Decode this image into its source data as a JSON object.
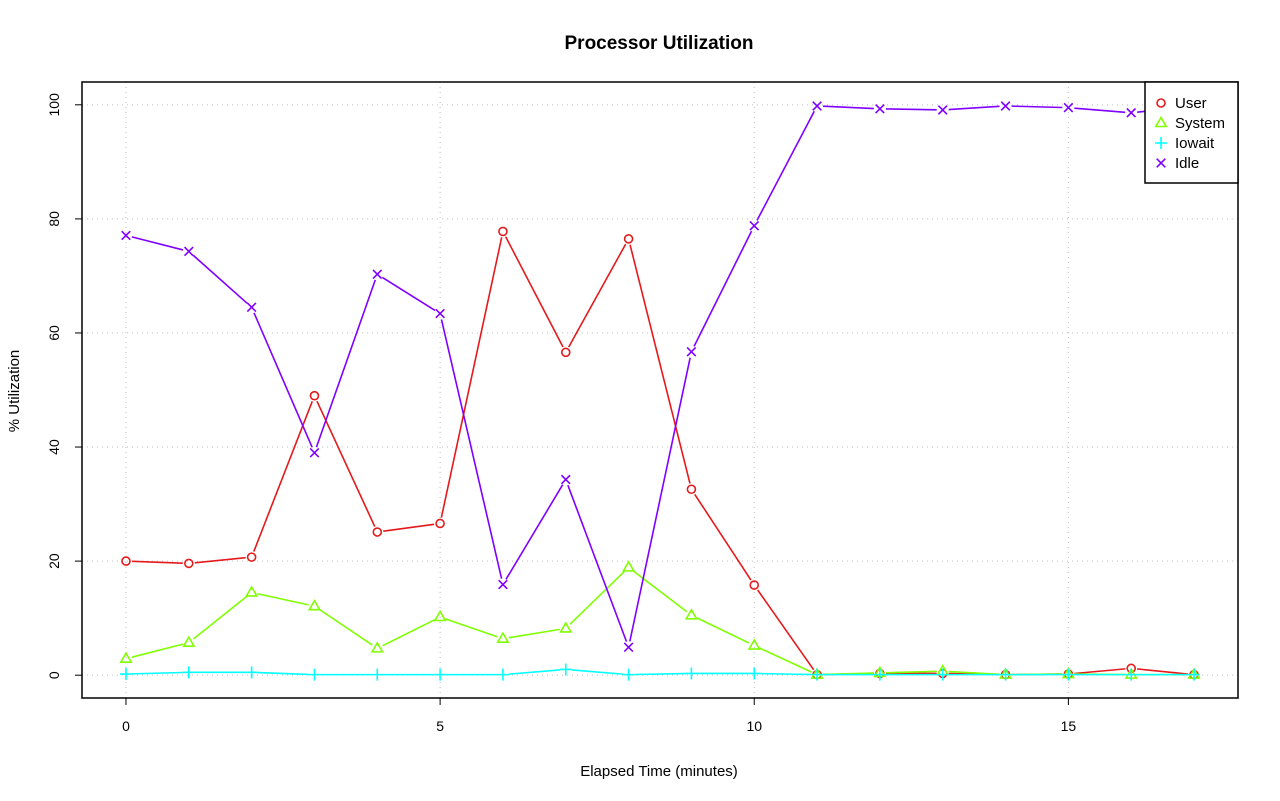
{
  "chart_data": {
    "type": "line",
    "title": "Processor Utilization",
    "xlabel": "Elapsed Time (minutes)",
    "ylabel": "% Utilization",
    "x": [
      0,
      1,
      2,
      3,
      4,
      5,
      6,
      7,
      8,
      9,
      10,
      11,
      12,
      13,
      14,
      15,
      16,
      17
    ],
    "xlim": [
      -0.7,
      17.7
    ],
    "ylim": [
      -4,
      104
    ],
    "xticks": [
      0,
      5,
      10,
      15
    ],
    "yticks": [
      0,
      20,
      40,
      60,
      80,
      100
    ],
    "grid": true,
    "legend_position": "top-right",
    "series": [
      {
        "name": "User",
        "color": "#e41a1c",
        "marker": "circle",
        "values": [
          20.0,
          19.6,
          20.7,
          49.0,
          25.1,
          26.6,
          77.8,
          56.6,
          76.5,
          32.6,
          15.8,
          0.1,
          0.3,
          0.3,
          0.1,
          0.2,
          1.2,
          0.1
        ]
      },
      {
        "name": "System",
        "color": "#80ff00",
        "marker": "triangle",
        "values": [
          2.9,
          5.7,
          14.5,
          12.1,
          4.7,
          10.2,
          6.4,
          8.2,
          18.9,
          10.5,
          5.2,
          0.1,
          0.4,
          0.7,
          0.1,
          0.2,
          0.1,
          0.1
        ]
      },
      {
        "name": "Iowait",
        "color": "#00ffff",
        "marker": "plus",
        "values": [
          0.2,
          0.5,
          0.5,
          0.1,
          0.1,
          0.1,
          0.1,
          1.0,
          0.1,
          0.3,
          0.3,
          0.1,
          0.1,
          0.1,
          0.1,
          0.1,
          0.1,
          0.1
        ]
      },
      {
        "name": "Idle",
        "color": "#8000ff",
        "marker": "cross",
        "values": [
          77.1,
          74.3,
          64.5,
          39.0,
          70.3,
          63.4,
          15.9,
          34.3,
          4.9,
          56.7,
          78.8,
          99.8,
          99.3,
          99.1,
          99.8,
          99.5,
          98.6,
          99.8
        ]
      }
    ]
  }
}
